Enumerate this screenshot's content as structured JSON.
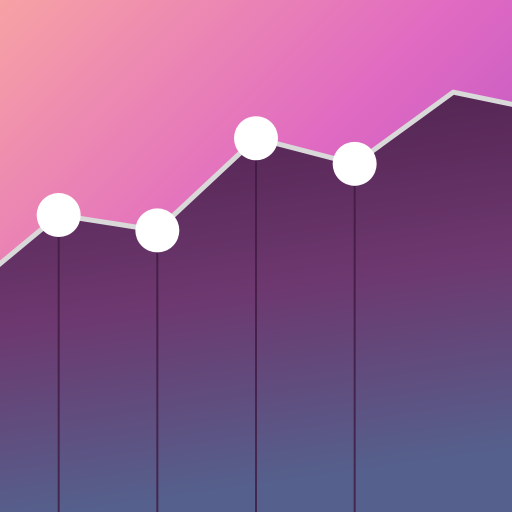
{
  "chart_data": {
    "type": "line",
    "title": "",
    "xlabel": "",
    "ylabel": "",
    "x": [
      0,
      1,
      2,
      3,
      4,
      5,
      6
    ],
    "series": [
      {
        "values": [
          0.42,
          0.58,
          0.55,
          0.73,
          0.68,
          0.82,
          0.78
        ],
        "fill": "area",
        "line_color": "#d9d9d9",
        "marker_color": "#ffffff"
      }
    ],
    "markers_visible_at_x": [
      1,
      2,
      3,
      4
    ],
    "vertical_guides_at_x": [
      1,
      2,
      3,
      4
    ],
    "ylim": [
      0,
      1
    ],
    "grid": false,
    "legend": "none",
    "colors": {
      "background_gradient_start": "#f7a2a4",
      "background_gradient_mid": "#e06ac2",
      "background_gradient_end": "#a148c8",
      "area_top": "#4b1f49",
      "area_mid": "#6d386f",
      "area_bottom": "#55608c",
      "guide_line": "#3f1a41"
    }
  }
}
